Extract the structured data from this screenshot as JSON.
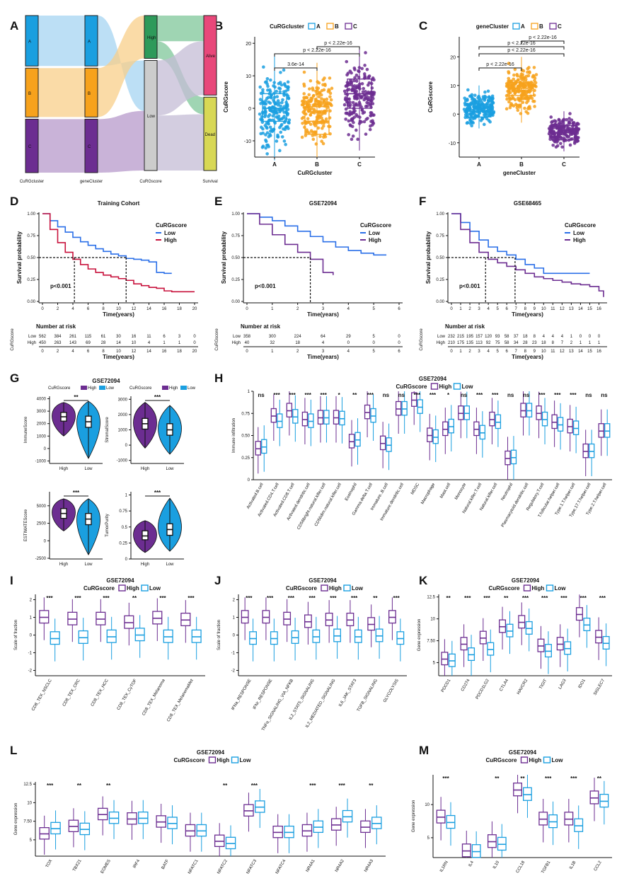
{
  "colors": {
    "A": "#1a9fe0",
    "B": "#f7a21c",
    "C": "#6c2d91",
    "high": "#6c2d91",
    "low": "#1a9fe0",
    "surv_high": "#c8123c",
    "surv_low": "#2a6fe8",
    "alive": "#e8487a",
    "dead": "#d8d855",
    "cur_high": "#2e9a5a"
  },
  "panel_labels": [
    "A",
    "B",
    "C",
    "D",
    "E",
    "F",
    "G",
    "H",
    "I",
    "J",
    "K",
    "L",
    "M"
  ],
  "chart_data": [
    {
      "id": "A",
      "type": "alluvial",
      "axes": [
        "CuRGcluster",
        "geneCluster",
        "CuRGscore",
        "Survival"
      ],
      "strata": [
        [
          "A",
          "B",
          "C"
        ],
        [
          "A",
          "B",
          "C"
        ],
        [
          "High",
          "Low"
        ],
        [
          "Alive",
          "Dead"
        ]
      ],
      "proportions": [
        [
          0.33,
          0.32,
          0.35
        ],
        [
          0.33,
          0.32,
          0.35
        ],
        [
          0.28,
          0.72
        ],
        [
          0.52,
          0.48
        ]
      ]
    },
    {
      "id": "B",
      "type": "boxplot",
      "legend_title": "CuRGcluster",
      "legend": [
        "A",
        "B",
        "C"
      ],
      "xlabel": "CuRGcluster",
      "ylabel": "CuRGscore",
      "categories": [
        "A",
        "B",
        "C"
      ],
      "ylim": [
        -15,
        22
      ],
      "yticks": [
        -10,
        0,
        10,
        20
      ],
      "stats": [
        {
          "q1": -4,
          "med": 0,
          "q3": 4.5,
          "lo": -16,
          "hi": 16
        },
        {
          "q1": -8,
          "med": -4,
          "q3": 0.5,
          "lo": -15,
          "hi": 14
        },
        {
          "q1": 0,
          "med": 4.5,
          "q3": 9,
          "lo": -13,
          "hi": 19
        }
      ],
      "comparisons": [
        {
          "a": 0,
          "b": 1,
          "label": "3.6e-14"
        },
        {
          "a": 0,
          "b": 2,
          "label": "p < 2.22e-16"
        },
        {
          "a": 1,
          "b": 2,
          "label": "p < 2.22e-16"
        }
      ]
    },
    {
      "id": "C",
      "type": "boxplot",
      "legend_title": "geneCluster",
      "legend": [
        "A",
        "B",
        "C"
      ],
      "xlabel": "geneCluster",
      "ylabel": "CuRGscore",
      "categories": [
        "A",
        "B",
        "C"
      ],
      "ylim": [
        -15,
        27
      ],
      "yticks": [
        -10,
        0,
        10,
        20
      ],
      "stats": [
        {
          "q1": -1,
          "med": 1,
          "q3": 3.5,
          "lo": -5,
          "hi": 10
        },
        {
          "q1": 6.5,
          "med": 9,
          "q3": 11,
          "lo": -3,
          "hi": 20
        },
        {
          "q1": -9,
          "med": -6.5,
          "q3": -4,
          "lo": -13,
          "hi": 1
        }
      ],
      "comparisons": [
        {
          "a": 0,
          "b": 1,
          "label": "p < 2.22e-16"
        },
        {
          "a": 0,
          "b": 2,
          "label": "p < 2.22e-16"
        },
        {
          "a": 0,
          "b": 2,
          "label": "p < 2.22e-16"
        },
        {
          "a": 1,
          "b": 2,
          "label": "p < 2.22e-16"
        }
      ]
    },
    {
      "id": "D",
      "type": "line",
      "title": "Training Cohort",
      "legend_title": "CuRGscore",
      "legend": [
        "Low",
        "High"
      ],
      "xlabel": "Time(years)",
      "ylabel": "Survival probability",
      "pvalue": "p<0.001",
      "xlim": [
        0,
        20
      ],
      "xticks": [
        0,
        2,
        4,
        6,
        8,
        10,
        12,
        14,
        16,
        18,
        20
      ],
      "yticks": [
        0,
        0.25,
        0.5,
        0.75,
        1
      ],
      "median_x": [
        4.2,
        11.0
      ],
      "low": {
        "x": [
          0,
          1,
          2,
          3,
          4,
          5,
          6,
          7,
          8,
          9,
          10,
          11,
          12,
          13,
          14,
          15,
          16,
          17
        ],
        "y": [
          1,
          0.92,
          0.85,
          0.79,
          0.73,
          0.68,
          0.64,
          0.6,
          0.57,
          0.54,
          0.52,
          0.49,
          0.48,
          0.47,
          0.45,
          0.33,
          0.32,
          0.32
        ]
      },
      "high": {
        "x": [
          0,
          1,
          2,
          3,
          4,
          5,
          6,
          7,
          8,
          9,
          10,
          11,
          12,
          13,
          14,
          15,
          16,
          17,
          18,
          19,
          20
        ],
        "y": [
          1,
          0.82,
          0.67,
          0.56,
          0.48,
          0.42,
          0.37,
          0.33,
          0.3,
          0.28,
          0.26,
          0.24,
          0.2,
          0.18,
          0.16,
          0.15,
          0.12,
          0.11,
          0.11,
          0.11,
          0.11
        ]
      },
      "risk_title": "Number at risk",
      "risk_ylabel": "CuRGscore",
      "risk_xlabel": "Time(years)",
      "risk_rows": [
        "Low",
        "High"
      ],
      "risk_low": [
        "562",
        "384",
        "261",
        "115",
        "61",
        "30",
        "16",
        "11",
        "6",
        "3",
        "0"
      ],
      "risk_high": [
        "450",
        "263",
        "143",
        "69",
        "28",
        "14",
        "10",
        "4",
        "1",
        "1",
        "0"
      ]
    },
    {
      "id": "E",
      "type": "line",
      "title": "GSE72094",
      "legend_title": "CuRGscore",
      "legend": [
        "Low",
        "High"
      ],
      "xlabel": "Time(years)",
      "ylabel": "Survival probability",
      "pvalue": "p<0.001",
      "xlim": [
        0,
        6
      ],
      "xticks": [
        0,
        1,
        2,
        3,
        4,
        5,
        6
      ],
      "yticks": [
        0,
        0.25,
        0.5,
        0.75,
        1
      ],
      "median_x": [
        2.5
      ],
      "low": {
        "x": [
          0,
          0.5,
          1,
          1.5,
          2,
          2.5,
          3,
          3.5,
          4,
          4.5,
          5,
          5.5
        ],
        "y": [
          1,
          0.96,
          0.92,
          0.86,
          0.8,
          0.74,
          0.68,
          0.62,
          0.58,
          0.55,
          0.53,
          0.53
        ]
      },
      "high": {
        "x": [
          0,
          0.5,
          1,
          1.5,
          2,
          2.5,
          3,
          3.4
        ],
        "y": [
          1,
          0.88,
          0.76,
          0.65,
          0.56,
          0.48,
          0.33,
          0.3
        ]
      },
      "risk_title": "Number at risk",
      "risk_ylabel": "CuRGscore",
      "risk_xlabel": "Time(years)",
      "risk_rows": [
        "Low",
        "High"
      ],
      "risk_low": [
        "358",
        "300",
        "224",
        "64",
        "29",
        "5",
        "0"
      ],
      "risk_high": [
        "40",
        "32",
        "18",
        "4",
        "0",
        "0",
        "0"
      ]
    },
    {
      "id": "F",
      "type": "line",
      "title": "GSE68465",
      "legend_title": "CuRGscore",
      "legend": [
        "Low",
        "High"
      ],
      "xlabel": "Time(years)",
      "ylabel": "Survival probability",
      "pvalue": "p<0.001",
      "xlim": [
        0,
        16.5
      ],
      "xticks": [
        0,
        1,
        2,
        3,
        4,
        5,
        6,
        7,
        8,
        9,
        10,
        11,
        12,
        13,
        14,
        15,
        16
      ],
      "yticks": [
        0,
        0.25,
        0.5,
        0.75,
        1
      ],
      "median_x": [
        3.7,
        6.9
      ],
      "low": {
        "x": [
          0,
          1,
          2,
          3,
          4,
          5,
          6,
          7,
          8,
          9,
          10,
          11,
          12,
          13,
          14,
          15
        ],
        "y": [
          1,
          0.9,
          0.8,
          0.7,
          0.62,
          0.57,
          0.53,
          0.48,
          0.42,
          0.38,
          0.32,
          0.32,
          0.32,
          0.32,
          0.32,
          0.32
        ]
      },
      "high": {
        "x": [
          0,
          1,
          2,
          3,
          4,
          5,
          6,
          7,
          8,
          9,
          10,
          11,
          12,
          13,
          14,
          15,
          16,
          16.5
        ],
        "y": [
          1,
          0.82,
          0.67,
          0.56,
          0.48,
          0.44,
          0.4,
          0.36,
          0.32,
          0.28,
          0.26,
          0.24,
          0.22,
          0.2,
          0.19,
          0.17,
          0.12,
          0.05
        ]
      },
      "risk_title": "Number at risk",
      "risk_ylabel": "CuRGscore",
      "risk_xlabel": "Time(years)",
      "risk_rows": [
        "Low",
        "High"
      ],
      "risk_low": [
        "232",
        "215",
        "195",
        "157",
        "120",
        "93",
        "58",
        "37",
        "18",
        "8",
        "4",
        "4",
        "4",
        "1",
        "0",
        "0",
        "0"
      ],
      "risk_high": [
        "210",
        "175",
        "135",
        "113",
        "92",
        "75",
        "58",
        "34",
        "28",
        "23",
        "18",
        "8",
        "7",
        "2",
        "1",
        "1",
        "1"
      ]
    },
    {
      "id": "G",
      "type": "violin",
      "title": "GSE72094",
      "legend_title": "CuRGscore",
      "legend": [
        "High",
        "Low"
      ],
      "subplots": [
        {
          "ylabel": "ImmuneScore",
          "yticks": [
            -1000,
            0,
            1000,
            2000,
            3000,
            4000
          ],
          "ylim": [
            -1200,
            4200
          ],
          "sig": "**",
          "high": {
            "q1": 2200,
            "med": 2550,
            "q3": 2900,
            "lo": 1000,
            "hi": 3700
          },
          "low": {
            "q1": 1700,
            "med": 2150,
            "q3": 2600,
            "lo": -800,
            "hi": 3800
          }
        },
        {
          "ylabel": "StromalScore",
          "yticks": [
            -1000,
            0,
            1000,
            2000,
            3000
          ],
          "ylim": [
            -1200,
            3200
          ],
          "sig": "***",
          "high": {
            "q1": 1050,
            "med": 1400,
            "q3": 1750,
            "lo": -200,
            "hi": 2800
          },
          "low": {
            "q1": 650,
            "med": 1000,
            "q3": 1400,
            "lo": -600,
            "hi": 2600
          }
        },
        {
          "ylabel": "ESTIMATEScore",
          "yticks": [
            -2500,
            0,
            2500,
            5000
          ],
          "ylim": [
            -2600,
            7000
          ],
          "sig": "***",
          "high": {
            "q1": 3200,
            "med": 3900,
            "q3": 4600,
            "lo": 1400,
            "hi": 6000
          },
          "low": {
            "q1": 2300,
            "med": 3100,
            "q3": 3900,
            "lo": -2000,
            "hi": 6000
          }
        },
        {
          "ylabel": "TumorPurity",
          "yticks": [
            0,
            0.25,
            0.5,
            0.75,
            1
          ],
          "ylim": [
            0,
            1.05
          ],
          "sig": "***",
          "high": {
            "q1": 0.3,
            "med": 0.36,
            "q3": 0.44,
            "lo": 0.1,
            "hi": 0.6
          },
          "low": {
            "q1": 0.37,
            "med": 0.46,
            "q3": 0.55,
            "lo": 0.12,
            "hi": 0.95
          }
        }
      ],
      "xcats": [
        "High",
        "Low"
      ]
    },
    {
      "id": "H",
      "type": "boxplot",
      "title": "GSE72094",
      "legend_title": "CuRGscore",
      "legend": [
        "High",
        "Low"
      ],
      "ylabel": "Immune infiltration",
      "ylim": [
        0,
        1
      ],
      "yticks": [
        0,
        0.25,
        0.5,
        0.75,
        1
      ],
      "categories": [
        "Activated.B.cell",
        "Activated.CD4.T.cell",
        "Activated.CD8.T.cell",
        "Activated.dendritic.cell",
        "CD56bright.natural.killer.cell",
        "CD56dim.natural.killer.cell",
        "Eosinophil",
        "Gamma.delta.T.cell",
        "Immature..B.cell",
        "Immature.dendritic.cell",
        "MDSC",
        "Macrophage",
        "Mast.cell",
        "Monocyte",
        "Natural.killer.T.cell",
        "Natural.killer.cell",
        "Neutrophil",
        "Plasmacytoid.dendritic.cell",
        "Regulatory.T.cell",
        "T.follicular.helper.cell",
        "Type.1.T.helper.cell",
        "Type.17.T.helper.cell",
        "Type.2.T.helper.cell"
      ],
      "sig": [
        "ns",
        "***",
        "***",
        "***",
        "***",
        "*",
        "**",
        "***",
        "ns",
        "ns",
        "***",
        "***",
        "*",
        "ns",
        "***",
        "***",
        "ns",
        "ns",
        "***",
        "***",
        "***",
        "ns",
        "ns"
      ],
      "high_med": [
        0.35,
        0.72,
        0.78,
        0.68,
        0.7,
        0.7,
        0.43,
        0.76,
        0.41,
        0.8,
        0.9,
        0.5,
        0.57,
        0.75,
        0.57,
        0.68,
        0.24,
        0.78,
        0.75,
        0.65,
        0.6,
        0.32,
        0.55
      ],
      "low_med": [
        0.37,
        0.66,
        0.71,
        0.66,
        0.7,
        0.69,
        0.45,
        0.72,
        0.39,
        0.8,
        0.82,
        0.48,
        0.6,
        0.75,
        0.53,
        0.65,
        0.25,
        0.78,
        0.68,
        0.62,
        0.58,
        0.32,
        0.55
      ]
    },
    {
      "id": "I",
      "type": "boxplot",
      "title": "GSE72094",
      "legend_title": "CuRGscore",
      "legend": [
        "High",
        "Low"
      ],
      "ylabel": "Scale of fraction",
      "ylim": [
        -2.3,
        2.3
      ],
      "yticks": [
        -2,
        -1,
        0,
        1,
        2
      ],
      "categories": [
        "CD8_TEX_NSCLC",
        "CD8_TEX_CRC",
        "CD8_TEX_HCC",
        "CD8_TEX_CyTOF",
        "CD8_TEX_Melanoma",
        "CD8_TEX_MelanomaMet"
      ],
      "sig": [
        "***",
        "***",
        "***",
        "**",
        "***",
        "***"
      ],
      "high_med": [
        1.0,
        0.9,
        0.9,
        0.7,
        0.95,
        0.85
      ],
      "low_med": [
        -0.2,
        -0.15,
        -0.1,
        0.0,
        -0.1,
        -0.1
      ]
    },
    {
      "id": "J",
      "type": "boxplot",
      "title": "GSE72094",
      "legend_title": "CuRGscore",
      "legend": [
        "High",
        "Low"
      ],
      "ylabel": "Scale of fraction",
      "ylim": [
        -2.3,
        2.3
      ],
      "yticks": [
        -2,
        -1,
        0,
        1,
        2
      ],
      "categories": [
        "IFNa_RESPONSE",
        "IFNr_RESPONSE",
        "TNFa_SIGNALING_VIA_NFKB",
        "IL2_STAT5_SIGNALING",
        "IL2_MEDIATED_SIGNALING",
        "IL6_JAK_STAT3",
        "TGFB_SIGNALING",
        "GLYCOLYSIS"
      ],
      "sig": [
        "***",
        "***",
        "***",
        "***",
        "***",
        "***",
        "**",
        "***"
      ],
      "high_med": [
        1.0,
        1.0,
        0.9,
        0.75,
        0.85,
        0.85,
        0.6,
        1.0
      ],
      "low_med": [
        -0.2,
        -0.2,
        -0.15,
        -0.1,
        -0.05,
        -0.1,
        -0.05,
        -0.2
      ]
    },
    {
      "id": "K",
      "type": "boxplot",
      "title": "GSE72094",
      "legend_title": "CuRGscore",
      "legend": [
        "High",
        "Low"
      ],
      "ylabel": "Gene expression",
      "ylim": [
        3.5,
        12.8
      ],
      "yticks": [
        5,
        7.5,
        10,
        12.5
      ],
      "categories": [
        "PDCD1",
        "CD274",
        "PDCD1LG2",
        "CTLA4",
        "HAVCR2",
        "TIGIT",
        "LAG3",
        "IDO1",
        "SIGLEC7"
      ],
      "sig": [
        "**",
        "***",
        "***",
        "**",
        "***",
        "***",
        "***",
        "***",
        "***"
      ],
      "high_med": [
        5.4,
        7.1,
        7.8,
        9.1,
        9.6,
        6.9,
        7.1,
        10.5,
        7.9
      ],
      "low_med": [
        5.2,
        5.9,
        6.5,
        8.6,
        8.9,
        6.3,
        6.6,
        9.3,
        7.2
      ]
    },
    {
      "id": "L",
      "type": "boxplot",
      "title": "GSE72094",
      "legend_title": "CuRGscore",
      "legend": [
        "High",
        "Low"
      ],
      "ylabel": "Gene expression",
      "ylim": [
        2.8,
        12.8
      ],
      "yticks": [
        5,
        7.5,
        10,
        12.5
      ],
      "categories": [
        "TOX",
        "TBX21",
        "EOMES",
        "IRF4",
        "BATF",
        "NFATC1",
        "NFATC2",
        "NFATC3",
        "NFATC4",
        "NR4A1",
        "NR4A2",
        "NR4A3"
      ],
      "sig": [
        "***",
        "**",
        "**",
        "",
        "",
        "",
        "**",
        "***",
        "",
        "***",
        "***",
        "**"
      ],
      "high_med": [
        5.8,
        6.8,
        8.4,
        7.8,
        7.4,
        6.2,
        4.8,
        8.9,
        6.0,
        6.2,
        7.0,
        6.7
      ],
      "low_med": [
        6.5,
        6.4,
        7.9,
        7.9,
        7.2,
        6.2,
        4.5,
        9.4,
        6.0,
        6.7,
        8.1,
        7.2
      ]
    },
    {
      "id": "M",
      "type": "boxplot",
      "title": "GSE72094",
      "legend_title": "CuRGscore",
      "legend": [
        "High",
        "Low"
      ],
      "ylabel": "Gene expression",
      "ylim": [
        2,
        14.5
      ],
      "yticks": [
        5,
        10
      ],
      "categories": [
        "IL1RN",
        "IL4",
        "IL10",
        "CCL18",
        "TGFB1",
        "IL1B",
        "CCL2"
      ],
      "sig": [
        "***",
        "",
        "**",
        "**",
        "***",
        "***",
        "**"
      ],
      "high_med": [
        8.1,
        3.0,
        4.4,
        12.2,
        7.8,
        7.8,
        11.0
      ],
      "low_med": [
        7.3,
        2.9,
        4.0,
        11.5,
        7.4,
        6.8,
        10.5
      ]
    }
  ]
}
